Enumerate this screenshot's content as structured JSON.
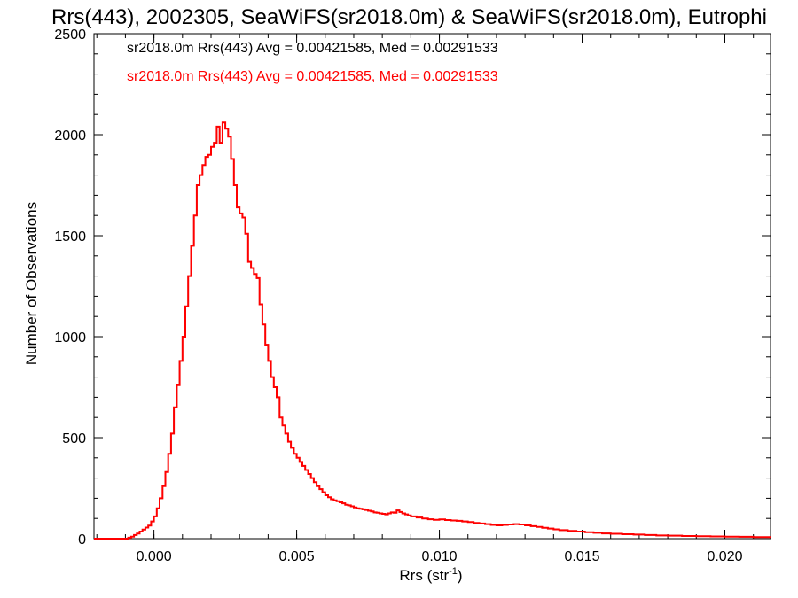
{
  "chart_data": {
    "type": "line",
    "title": "Rrs(443), 2002305, SeaWiFS(sr2018.0m) & SeaWiFS(sr2018.0m), Eutrophi",
    "xlabel": "Rrs (str",
    "xlabel_sup": "-1",
    "xlabel_end": ")",
    "ylabel": "Number of Observations",
    "xlim": [
      -0.0021,
      0.0216
    ],
    "ylim": [
      0,
      2500
    ],
    "x_ticks": [
      0.0,
      0.005,
      0.01,
      0.015,
      0.02
    ],
    "x_tick_labels": [
      "0.000",
      "0.005",
      "0.010",
      "0.015",
      "0.020"
    ],
    "y_ticks": [
      0,
      500,
      1000,
      1500,
      2000,
      2500
    ],
    "y_tick_labels": [
      "0",
      "500",
      "1000",
      "1500",
      "2000",
      "2500"
    ],
    "grid": false,
    "legend": "top-left",
    "series": [
      {
        "name": "sr2018.0m Rrs(443) Avg = 0.00421585, Med = 0.00291533",
        "color": "#000000",
        "step": true,
        "points": [
          [
            -0.0021,
            0
          ],
          [
            -0.001,
            0
          ],
          [
            -0.0009,
            5
          ],
          [
            -0.0008,
            10
          ],
          [
            -0.0007,
            18
          ],
          [
            -0.0006,
            25
          ],
          [
            -0.0005,
            35
          ],
          [
            -0.0004,
            45
          ],
          [
            -0.0003,
            55
          ],
          [
            -0.0002,
            65
          ],
          [
            -0.0001,
            85
          ],
          [
            0.0,
            110
          ],
          [
            0.0001,
            150
          ],
          [
            0.0002,
            200
          ],
          [
            0.0003,
            260
          ],
          [
            0.0004,
            330
          ],
          [
            0.0005,
            420
          ],
          [
            0.0006,
            520
          ],
          [
            0.0007,
            650
          ],
          [
            0.0008,
            760
          ],
          [
            0.0009,
            880
          ],
          [
            0.001,
            1000
          ],
          [
            0.0011,
            1150
          ],
          [
            0.0012,
            1300
          ],
          [
            0.0013,
            1450
          ],
          [
            0.0014,
            1600
          ],
          [
            0.0015,
            1750
          ],
          [
            0.0016,
            1800
          ],
          [
            0.0017,
            1850
          ],
          [
            0.0018,
            1890
          ],
          [
            0.0019,
            1900
          ],
          [
            0.002,
            1940
          ],
          [
            0.0021,
            1960
          ],
          [
            0.0022,
            2040
          ],
          [
            0.0023,
            1960
          ],
          [
            0.0024,
            2060
          ],
          [
            0.0025,
            2030
          ],
          [
            0.0026,
            1990
          ],
          [
            0.0027,
            1880
          ],
          [
            0.0028,
            1750
          ],
          [
            0.0029,
            1640
          ],
          [
            0.003,
            1610
          ],
          [
            0.0031,
            1590
          ],
          [
            0.0032,
            1510
          ],
          [
            0.0033,
            1370
          ],
          [
            0.0034,
            1340
          ],
          [
            0.0035,
            1310
          ],
          [
            0.0036,
            1290
          ],
          [
            0.0037,
            1160
          ],
          [
            0.0038,
            1060
          ],
          [
            0.0039,
            960
          ],
          [
            0.004,
            880
          ],
          [
            0.0041,
            800
          ],
          [
            0.0042,
            750
          ],
          [
            0.0043,
            700
          ],
          [
            0.0044,
            600
          ],
          [
            0.0045,
            560
          ],
          [
            0.0046,
            520
          ],
          [
            0.0047,
            480
          ],
          [
            0.0048,
            450
          ],
          [
            0.0049,
            420
          ],
          [
            0.005,
            400
          ],
          [
            0.0051,
            380
          ],
          [
            0.0052,
            360
          ],
          [
            0.0053,
            340
          ],
          [
            0.0054,
            320
          ],
          [
            0.0055,
            300
          ],
          [
            0.0056,
            280
          ],
          [
            0.0057,
            260
          ],
          [
            0.0058,
            245
          ],
          [
            0.0059,
            230
          ],
          [
            0.006,
            215
          ],
          [
            0.0061,
            205
          ],
          [
            0.0062,
            195
          ],
          [
            0.0063,
            190
          ],
          [
            0.0064,
            185
          ],
          [
            0.0065,
            180
          ],
          [
            0.0066,
            175
          ],
          [
            0.0067,
            168
          ],
          [
            0.0068,
            165
          ],
          [
            0.0069,
            160
          ],
          [
            0.007,
            155
          ],
          [
            0.0071,
            150
          ],
          [
            0.0072,
            148
          ],
          [
            0.0073,
            145
          ],
          [
            0.0074,
            142
          ],
          [
            0.0075,
            138
          ],
          [
            0.0076,
            135
          ],
          [
            0.0077,
            130
          ],
          [
            0.0078,
            128
          ],
          [
            0.0079,
            125
          ],
          [
            0.008,
            123
          ],
          [
            0.0081,
            120
          ],
          [
            0.0082,
            125
          ],
          [
            0.0083,
            130
          ],
          [
            0.0084,
            128
          ],
          [
            0.0085,
            140
          ],
          [
            0.0086,
            132
          ],
          [
            0.0087,
            125
          ],
          [
            0.0088,
            120
          ],
          [
            0.0089,
            115
          ],
          [
            0.009,
            110
          ],
          [
            0.0092,
            105
          ],
          [
            0.0094,
            100
          ],
          [
            0.0096,
            96
          ],
          [
            0.0098,
            93
          ],
          [
            0.01,
            95
          ],
          [
            0.0102,
            92
          ],
          [
            0.0104,
            90
          ],
          [
            0.0106,
            88
          ],
          [
            0.0108,
            85
          ],
          [
            0.011,
            82
          ],
          [
            0.0112,
            78
          ],
          [
            0.0114,
            75
          ],
          [
            0.0116,
            72
          ],
          [
            0.0118,
            68
          ],
          [
            0.012,
            66
          ],
          [
            0.0122,
            68
          ],
          [
            0.0124,
            70
          ],
          [
            0.0126,
            72
          ],
          [
            0.0128,
            70
          ],
          [
            0.013,
            66
          ],
          [
            0.0132,
            62
          ],
          [
            0.0134,
            58
          ],
          [
            0.0136,
            54
          ],
          [
            0.0138,
            50
          ],
          [
            0.014,
            46
          ],
          [
            0.0142,
            42
          ],
          [
            0.0145,
            38
          ],
          [
            0.0148,
            35
          ],
          [
            0.0151,
            32
          ],
          [
            0.0154,
            29
          ],
          [
            0.0157,
            26
          ],
          [
            0.016,
            24
          ],
          [
            0.0164,
            22
          ],
          [
            0.0168,
            20
          ],
          [
            0.0172,
            18
          ],
          [
            0.0176,
            16
          ],
          [
            0.018,
            15
          ],
          [
            0.0185,
            13
          ],
          [
            0.019,
            12
          ],
          [
            0.0195,
            11
          ],
          [
            0.02,
            10
          ],
          [
            0.0205,
            9
          ],
          [
            0.021,
            8
          ],
          [
            0.0216,
            7
          ]
        ]
      },
      {
        "name": "sr2018.0m Rrs(443) Avg = 0.00421585, Med = 0.00291533",
        "color": "#ff0000",
        "step": true,
        "same_as_series_index": 0
      }
    ]
  }
}
